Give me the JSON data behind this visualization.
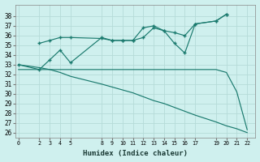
{
  "xlabel": "Humidex (Indice chaleur)",
  "bg_color": "#cff0ee",
  "grid_color": "#b5dbd8",
  "line_color": "#1a7a6e",
  "ylim_min": 25.5,
  "ylim_max": 39.2,
  "xlim_min": -0.3,
  "xlim_max": 22.8,
  "yticks": [
    26,
    27,
    28,
    29,
    30,
    31,
    32,
    33,
    34,
    35,
    36,
    37,
    38
  ],
  "xticks": [
    0,
    2,
    3,
    4,
    5,
    8,
    9,
    10,
    11,
    12,
    13,
    14,
    15,
    16,
    17,
    19,
    20,
    21,
    22
  ],
  "series": [
    {
      "x": [
        2,
        3,
        4,
        5,
        8,
        9,
        10,
        11,
        12,
        13,
        14,
        15,
        16,
        17,
        19,
        20
      ],
      "y": [
        35.2,
        35.5,
        35.8,
        35.8,
        35.7,
        35.5,
        35.5,
        35.5,
        35.8,
        36.8,
        36.5,
        36.3,
        36.0,
        37.2,
        37.5,
        38.2
      ],
      "marker": true
    },
    {
      "x": [
        0,
        2,
        3,
        4,
        5,
        8,
        9,
        10,
        11,
        12,
        13,
        14,
        15,
        16,
        17,
        19,
        20
      ],
      "y": [
        33.0,
        32.5,
        33.5,
        34.5,
        33.2,
        35.8,
        35.5,
        35.5,
        35.5,
        36.8,
        37.0,
        36.5,
        35.2,
        34.2,
        37.2,
        37.5,
        38.2
      ],
      "marker": true
    },
    {
      "x": [
        0,
        2,
        3,
        4,
        5,
        8,
        9,
        10,
        11,
        12,
        13,
        14,
        15,
        16,
        17,
        19,
        20,
        21,
        22
      ],
      "y": [
        32.5,
        32.5,
        32.5,
        32.5,
        32.5,
        32.5,
        32.5,
        32.5,
        32.5,
        32.5,
        32.5,
        32.5,
        32.5,
        32.5,
        32.5,
        32.5,
        32.2,
        30.2,
        26.3
      ],
      "marker": false
    },
    {
      "x": [
        0,
        2,
        3,
        4,
        5,
        8,
        9,
        10,
        11,
        12,
        13,
        14,
        15,
        16,
        17,
        19,
        20,
        21,
        22
      ],
      "y": [
        33.0,
        32.7,
        32.5,
        32.2,
        31.8,
        31.0,
        30.7,
        30.4,
        30.1,
        29.7,
        29.3,
        29.0,
        28.6,
        28.2,
        27.8,
        27.1,
        26.7,
        26.4,
        26.0
      ],
      "marker": false
    }
  ]
}
